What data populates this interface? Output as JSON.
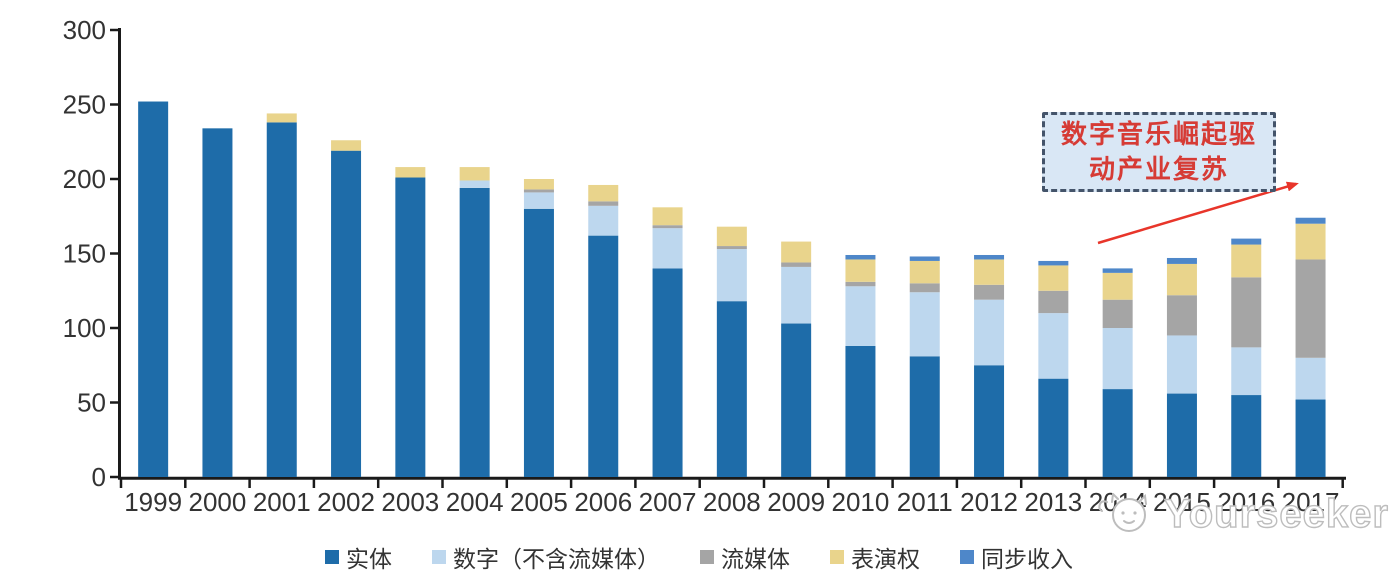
{
  "chart_data": {
    "type": "bar",
    "stacked": true,
    "title": "",
    "xlabel": "",
    "ylabel": "",
    "ylim": [
      0,
      300
    ],
    "y_ticks": [
      0,
      50,
      100,
      150,
      200,
      250,
      300
    ],
    "grid": false,
    "legend_position": "bottom",
    "categories": [
      "1999",
      "2000",
      "2001",
      "2002",
      "2003",
      "2004",
      "2005",
      "2006",
      "2007",
      "2008",
      "2009",
      "2010",
      "2011",
      "2012",
      "2013",
      "2014",
      "2015",
      "2016",
      "2017"
    ],
    "series": [
      {
        "name": "实体",
        "color": "#1e6ca9",
        "values": [
          252,
          234,
          238,
          219,
          201,
          194,
          180,
          162,
          140,
          118,
          103,
          88,
          81,
          75,
          66,
          59,
          56,
          55,
          52
        ]
      },
      {
        "name": "数字（不含流媒体）",
        "color": "#bdd7ee",
        "values": [
          0,
          0,
          0,
          0,
          0,
          5,
          11,
          20,
          27,
          35,
          38,
          40,
          43,
          44,
          44,
          41,
          39,
          32,
          28
        ]
      },
      {
        "name": "流媒体",
        "color": "#a5a5a5",
        "values": [
          0,
          0,
          0,
          0,
          0,
          0,
          2,
          3,
          2,
          2,
          3,
          3,
          6,
          10,
          15,
          19,
          27,
          47,
          66
        ]
      },
      {
        "name": "表演权",
        "color": "#e9d48c",
        "values": [
          0,
          0,
          6,
          7,
          7,
          9,
          7,
          11,
          12,
          13,
          14,
          15,
          15,
          17,
          17,
          18,
          21,
          22,
          24
        ]
      },
      {
        "name": "同步收入",
        "color": "#4e87c9",
        "values": [
          0,
          0,
          0,
          0,
          0,
          0,
          0,
          0,
          0,
          0,
          0,
          3,
          3,
          3,
          3,
          3,
          4,
          4,
          4
        ]
      }
    ]
  },
  "annotation": {
    "line1": "数字音乐崛起驱",
    "line2": "动产业复苏",
    "text_color": "#d63b35",
    "box_fill": "#d9e7f5",
    "box_border_color": "#44546a",
    "arrow_color": "#e8352a"
  },
  "axis": {
    "line_color": "#1a1a1a",
    "label_color": "#333333"
  },
  "watermark": {
    "text": "Yourseeker",
    "color": "#bdbdbd"
  }
}
